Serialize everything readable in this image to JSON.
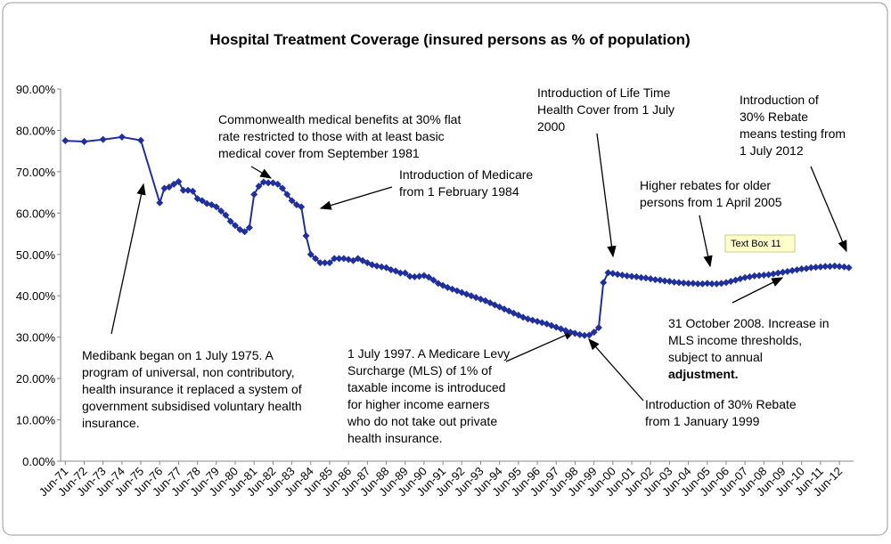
{
  "chart_data": {
    "type": "line",
    "title": "Hospital Treatment Coverage (insured persons as % of population)",
    "xlim": [
      1971.25,
      2013.25
    ],
    "ylim": [
      0,
      90
    ],
    "yticks": [
      {
        "value": 0,
        "label": "0.00%"
      },
      {
        "value": 10,
        "label": "10.00%"
      },
      {
        "value": 20,
        "label": "20.00%"
      },
      {
        "value": 30,
        "label": "30.00%"
      },
      {
        "value": 40,
        "label": "40.00%"
      },
      {
        "value": 50,
        "label": "50.00%"
      },
      {
        "value": 60,
        "label": "60.00%"
      },
      {
        "value": 70,
        "label": "70.00%"
      },
      {
        "value": 80,
        "label": "80.00%"
      },
      {
        "value": 90,
        "label": "90.00%"
      }
    ],
    "xticks": [
      {
        "value": 1971.5,
        "label": "Jun-71"
      },
      {
        "value": 1972.5,
        "label": "Jun-72"
      },
      {
        "value": 1973.5,
        "label": "Jun-73"
      },
      {
        "value": 1974.5,
        "label": "Jun-74"
      },
      {
        "value": 1975.5,
        "label": "Jun-75"
      },
      {
        "value": 1976.5,
        "label": "Jun-76"
      },
      {
        "value": 1977.5,
        "label": "Jun-77"
      },
      {
        "value": 1978.5,
        "label": "Jun-78"
      },
      {
        "value": 1979.5,
        "label": "Jun-79"
      },
      {
        "value": 1980.5,
        "label": "Jun-80"
      },
      {
        "value": 1981.5,
        "label": "Jun-81"
      },
      {
        "value": 1982.5,
        "label": "Jun-82"
      },
      {
        "value": 1983.5,
        "label": "Jun-83"
      },
      {
        "value": 1984.5,
        "label": "Jun-84"
      },
      {
        "value": 1985.5,
        "label": "Jun-85"
      },
      {
        "value": 1986.5,
        "label": "Jun-86"
      },
      {
        "value": 1987.5,
        "label": "Jun-87"
      },
      {
        "value": 1988.5,
        "label": "Jun-88"
      },
      {
        "value": 1989.5,
        "label": "Jun-89"
      },
      {
        "value": 1990.5,
        "label": "Jun-90"
      },
      {
        "value": 1991.5,
        "label": "Jun-91"
      },
      {
        "value": 1992.5,
        "label": "Jun-92"
      },
      {
        "value": 1993.5,
        "label": "Jun-93"
      },
      {
        "value": 1994.5,
        "label": "Jun-94"
      },
      {
        "value": 1995.5,
        "label": "Jun-95"
      },
      {
        "value": 1996.5,
        "label": "Jun-96"
      },
      {
        "value": 1997.5,
        "label": "Jun-97"
      },
      {
        "value": 1998.5,
        "label": "Jun-98"
      },
      {
        "value": 1999.5,
        "label": "Jun-99"
      },
      {
        "value": 2000.5,
        "label": "Jun-00"
      },
      {
        "value": 2001.5,
        "label": "Jun-01"
      },
      {
        "value": 2002.5,
        "label": "Jun-02"
      },
      {
        "value": 2003.5,
        "label": "Jun-03"
      },
      {
        "value": 2004.5,
        "label": "Jun-04"
      },
      {
        "value": 2005.5,
        "label": "Jun-05"
      },
      {
        "value": 2006.5,
        "label": "Jun-06"
      },
      {
        "value": 2007.5,
        "label": "Jun-07"
      },
      {
        "value": 2008.5,
        "label": "Jun-08"
      },
      {
        "value": 2009.5,
        "label": "Jun-09"
      },
      {
        "value": 2010.5,
        "label": "Jun-10"
      },
      {
        "value": 2011.5,
        "label": "Jun-11"
      },
      {
        "value": 2012.5,
        "label": "Jun-12"
      }
    ],
    "series": [
      {
        "color": "#1f2f9c",
        "x": [
          1971.5,
          1972.5,
          1973.5,
          1974.5,
          1975.5,
          1976.5,
          1976.75,
          1977,
          1977.25,
          1977.5,
          1977.75,
          1978,
          1978.25,
          1978.5,
          1978.75,
          1979,
          1979.25,
          1979.5,
          1979.75,
          1980,
          1980.25,
          1980.5,
          1980.75,
          1981,
          1981.25,
          1981.5,
          1981.75,
          1982,
          1982.25,
          1982.5,
          1982.75,
          1983,
          1983.25,
          1983.5,
          1983.75,
          1984,
          1984.25,
          1984.5,
          1984.75,
          1985,
          1985.25,
          1985.5,
          1985.75,
          1986,
          1986.25,
          1986.5,
          1986.75,
          1987,
          1987.25,
          1987.5,
          1987.75,
          1988,
          1988.25,
          1988.5,
          1988.75,
          1989,
          1989.25,
          1989.5,
          1989.75,
          1990,
          1990.25,
          1990.5,
          1990.75,
          1991,
          1991.25,
          1991.5,
          1991.75,
          1992,
          1992.25,
          1992.5,
          1992.75,
          1993,
          1993.25,
          1993.5,
          1993.75,
          1994,
          1994.25,
          1994.5,
          1994.75,
          1995,
          1995.25,
          1995.5,
          1995.75,
          1996,
          1996.25,
          1996.5,
          1996.75,
          1997,
          1997.25,
          1997.5,
          1997.75,
          1998,
          1998.25,
          1998.5,
          1998.75,
          1999,
          1999.25,
          1999.5,
          1999.75,
          2000,
          2000.25,
          2000.5,
          2000.75,
          2001,
          2001.25,
          2001.5,
          2001.75,
          2002,
          2002.25,
          2002.5,
          2002.75,
          2003,
          2003.25,
          2003.5,
          2003.75,
          2004,
          2004.25,
          2004.5,
          2004.75,
          2005,
          2005.25,
          2005.5,
          2005.75,
          2006,
          2006.25,
          2006.5,
          2006.75,
          2007,
          2007.25,
          2007.5,
          2007.75,
          2008,
          2008.25,
          2008.5,
          2008.75,
          2009,
          2009.25,
          2009.5,
          2009.75,
          2010,
          2010.25,
          2010.5,
          2010.75,
          2011,
          2011.25,
          2011.5,
          2011.75,
          2012,
          2012.25,
          2012.5,
          2012.75,
          2013
        ],
        "values": [
          77.5,
          77.3,
          77.8,
          78.4,
          77.6,
          62.5,
          66,
          66.3,
          67,
          67.6,
          65.5,
          65.5,
          65.3,
          63.5,
          63,
          62.3,
          62,
          61.5,
          60.5,
          59.5,
          58,
          57,
          56,
          55.5,
          56.5,
          64.5,
          66.5,
          67.5,
          67.3,
          67.3,
          67,
          66,
          64.5,
          63,
          62,
          61.5,
          54.5,
          50,
          49,
          48,
          48,
          48,
          49,
          49,
          49,
          48.8,
          48.5,
          49,
          48.5,
          48,
          47.5,
          47.2,
          47,
          46.8,
          46.3,
          46,
          45.5,
          45.5,
          44.7,
          44.6,
          44.7,
          44.9,
          44.5,
          43.8,
          43,
          42.5,
          42,
          41.6,
          41.2,
          40.8,
          40.4,
          40,
          39.6,
          39.2,
          38.8,
          38.3,
          37.8,
          37.3,
          36.8,
          36.3,
          35.8,
          35.3,
          34.8,
          34.4,
          34.1,
          33.8,
          33.5,
          33.2,
          32.8,
          32.4,
          32,
          31.6,
          31.2,
          30.9,
          30.6,
          30.4,
          30.5,
          31.2,
          32.3,
          43.2,
          45.6,
          45.4,
          45.2,
          45,
          44.8,
          44.7,
          44.6,
          44.4,
          44.3,
          44.1,
          43.9,
          43.8,
          43.6,
          43.5,
          43.3,
          43.2,
          43.1,
          43,
          43,
          42.9,
          42.9,
          43,
          42.9,
          42.9,
          43,
          43.2,
          43.5,
          43.8,
          44.1,
          44.4,
          44.6,
          44.8,
          44.9,
          45,
          45.1,
          45.3,
          45.5,
          45.7,
          45.9,
          46.1,
          46.3,
          46.5,
          46.6,
          46.8,
          46.9,
          47,
          47.1,
          47.1,
          47.2,
          47.1,
          47,
          46.8
        ]
      }
    ],
    "annotations": [
      [
        "Commonwealth medical benefits at 30% flat",
        "rate restricted to those with at least basic",
        "medical cover from September 1981"
      ],
      [
        "Introduction of Medicare",
        "from 1 February 1984"
      ],
      [
        "Introduction of Life Time",
        "Health Cover from 1 July",
        "2000"
      ],
      [
        "Introduction of",
        "30% Rebate",
        "means testing from",
        "1 July 2012"
      ],
      [
        "Higher rebates for older",
        "persons from 1 April 2005"
      ],
      [
        "Text Box 11"
      ],
      [
        "Medibank began on 1 July 1975.  A",
        "program of universal, non contributory,",
        "health insurance it replaced a system of",
        "government subsidised voluntary health",
        "insurance."
      ],
      [
        "1 July 1997. A Medicare Levy",
        "Surcharge (MLS) of 1% of",
        "taxable income is introduced",
        "for higher income earners",
        "who do not take out private",
        "health insurance."
      ],
      [
        "31 October 2008. Increase in",
        "MLS income thresholds,",
        "subject to annual",
        "adjustment."
      ],
      [
        "Introduction of 30% Rebate",
        "from 1 January 1999"
      ]
    ]
  }
}
